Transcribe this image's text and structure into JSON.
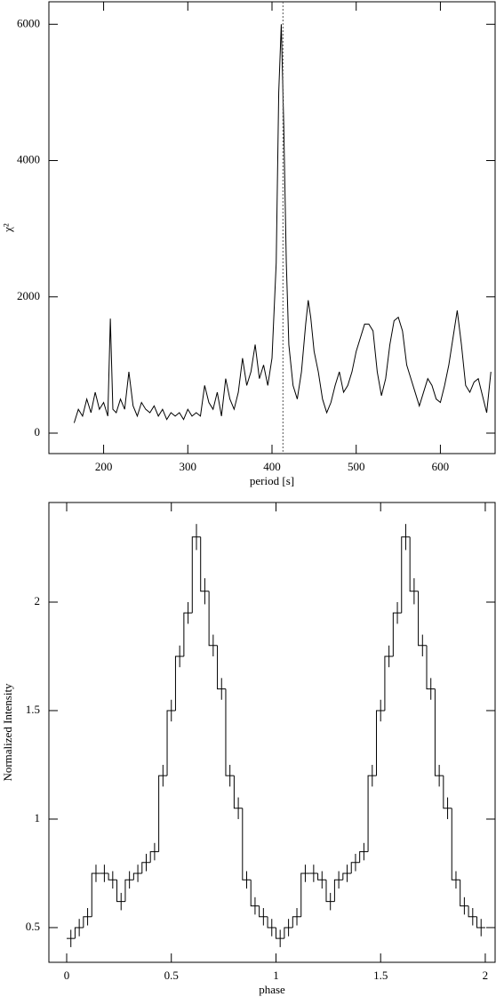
{
  "chart_data": [
    {
      "type": "line",
      "xlabel": "period [s]",
      "ylabel": "χ²",
      "color": "#000000",
      "x": [
        165,
        170,
        175,
        180,
        185,
        190,
        195,
        200,
        205,
        208,
        211,
        215,
        220,
        225,
        230,
        235,
        240,
        245,
        250,
        255,
        260,
        265,
        270,
        275,
        280,
        285,
        290,
        295,
        300,
        305,
        310,
        315,
        320,
        325,
        330,
        335,
        340,
        345,
        350,
        355,
        360,
        365,
        370,
        375,
        380,
        385,
        390,
        395,
        400,
        405,
        408,
        411,
        414,
        417,
        420,
        425,
        430,
        435,
        440,
        443,
        446,
        450,
        455,
        460,
        465,
        470,
        475,
        480,
        485,
        490,
        495,
        500,
        505,
        510,
        515,
        520,
        525,
        530,
        535,
        540,
        545,
        550,
        555,
        560,
        565,
        570,
        575,
        580,
        585,
        590,
        595,
        600,
        605,
        610,
        615,
        620,
        625,
        630,
        635,
        640,
        645,
        650,
        655,
        660
      ],
      "values": [
        150,
        350,
        250,
        500,
        300,
        600,
        350,
        450,
        250,
        1680,
        350,
        300,
        500,
        350,
        900,
        400,
        250,
        450,
        350,
        300,
        400,
        250,
        350,
        200,
        300,
        250,
        300,
        200,
        350,
        250,
        300,
        250,
        700,
        450,
        350,
        600,
        250,
        800,
        500,
        350,
        600,
        1100,
        700,
        900,
        1300,
        800,
        1000,
        700,
        1100,
        2500,
        5000,
        6000,
        4500,
        2500,
        1300,
        700,
        500,
        900,
        1600,
        1950,
        1700,
        1200,
        900,
        500,
        300,
        450,
        700,
        900,
        600,
        700,
        900,
        1200,
        1400,
        1600,
        1600,
        1500,
        900,
        550,
        800,
        1300,
        1650,
        1700,
        1500,
        1000,
        800,
        600,
        400,
        600,
        800,
        700,
        500,
        450,
        700,
        1000,
        1400,
        1800,
        1300,
        700,
        600,
        750,
        800,
        550,
        300,
        900
      ],
      "vline": 413,
      "vline_color": "#555555",
      "xlim": [
        135,
        665
      ],
      "xticks": [
        200,
        300,
        400,
        500,
        600
      ],
      "ylim": [
        -300,
        6330
      ],
      "yticks": [
        0,
        2000,
        4000,
        6000
      ]
    },
    {
      "type": "histogram",
      "xlabel": "phase",
      "ylabel": "Normalized Intensity",
      "color": "#000000",
      "bins": [
        0,
        0.04,
        0.08,
        0.12,
        0.16,
        0.2,
        0.24,
        0.28,
        0.32,
        0.36,
        0.4,
        0.44,
        0.48,
        0.52,
        0.56,
        0.6,
        0.64,
        0.68,
        0.72,
        0.76,
        0.8,
        0.84,
        0.88,
        0.92,
        0.96,
        1,
        1.04,
        1.08,
        1.12,
        1.16,
        1.2,
        1.24,
        1.28,
        1.32,
        1.36,
        1.4,
        1.44,
        1.48,
        1.52,
        1.56,
        1.6,
        1.64,
        1.68,
        1.72,
        1.76,
        1.8,
        1.84,
        1.88,
        1.92,
        1.96,
        2
      ],
      "values": [
        0.45,
        0.5,
        0.55,
        0.75,
        0.75,
        0.72,
        0.62,
        0.72,
        0.75,
        0.8,
        0.85,
        1.2,
        1.5,
        1.75,
        1.95,
        2.3,
        2.05,
        1.8,
        1.6,
        1.2,
        1.05,
        0.72,
        0.6,
        0.55,
        0.5,
        0.45,
        0.5,
        0.55,
        0.75,
        0.75,
        0.72,
        0.62,
        0.72,
        0.75,
        0.8,
        0.85,
        1.2,
        1.5,
        1.75,
        1.95,
        2.3,
        2.05,
        1.8,
        1.6,
        1.2,
        1.05,
        0.72,
        0.6,
        0.55,
        0.5
      ],
      "errors": [
        0.04,
        0.04,
        0.04,
        0.04,
        0.04,
        0.04,
        0.04,
        0.04,
        0.04,
        0.04,
        0.04,
        0.05,
        0.05,
        0.05,
        0.05,
        0.06,
        0.06,
        0.05,
        0.05,
        0.05,
        0.05,
        0.04,
        0.04,
        0.04,
        0.04,
        0.04,
        0.04,
        0.04,
        0.04,
        0.04,
        0.04,
        0.04,
        0.04,
        0.04,
        0.04,
        0.04,
        0.05,
        0.05,
        0.05,
        0.05,
        0.06,
        0.06,
        0.05,
        0.05,
        0.05,
        0.05,
        0.04,
        0.04,
        0.04,
        0.04
      ],
      "xlim": [
        -0.085,
        2.047
      ],
      "xticks": [
        0,
        0.5,
        1,
        1.5,
        2
      ],
      "ylim": [
        0.34,
        2.459
      ],
      "yticks": [
        0.5,
        1,
        1.5,
        2
      ]
    }
  ]
}
